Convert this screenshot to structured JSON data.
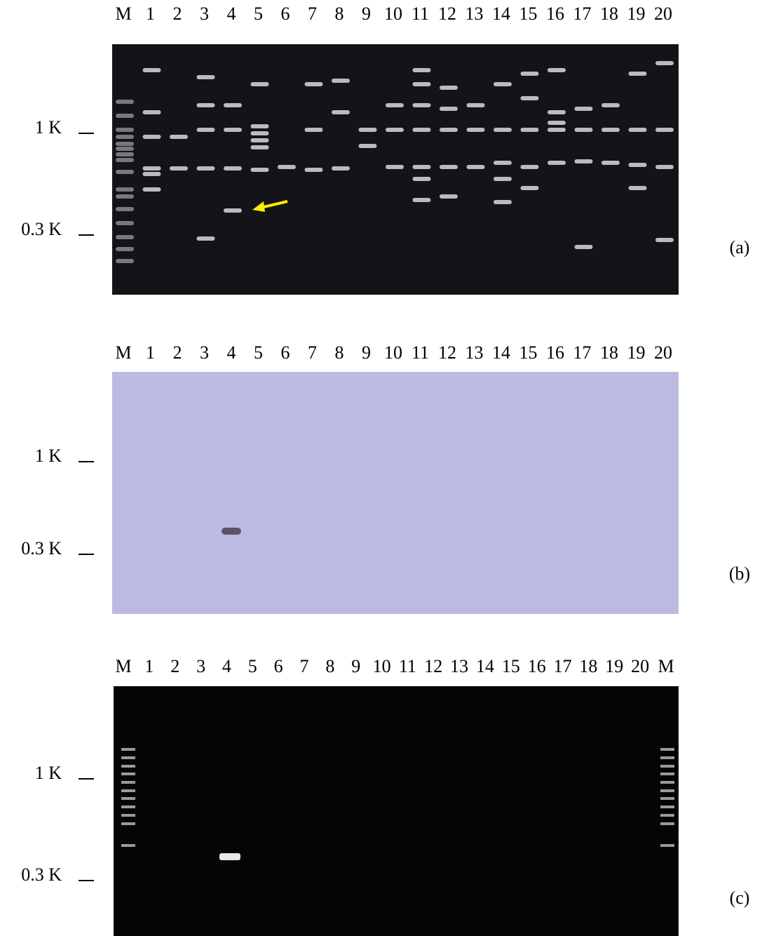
{
  "panels": [
    {
      "lanes": [
        "M",
        "1",
        "2",
        "3",
        "4",
        "5",
        "6",
        "7",
        "8",
        "9",
        "10",
        "11",
        "12",
        "13",
        "14",
        "15",
        "16",
        "17",
        "18",
        "19",
        "20"
      ],
      "markers": [
        "1 K",
        "0.3 K"
      ],
      "label": "(a)"
    },
    {
      "lanes": [
        "M",
        "1",
        "2",
        "3",
        "4",
        "5",
        "6",
        "7",
        "8",
        "9",
        "10",
        "11",
        "12",
        "13",
        "14",
        "15",
        "16",
        "17",
        "18",
        "19",
        "20"
      ],
      "markers": [
        "1 K",
        "0.3 K"
      ],
      "label": "(b)"
    },
    {
      "lanes": [
        "M",
        "1",
        "2",
        "3",
        "4",
        "5",
        "6",
        "7",
        "8",
        "9",
        "10",
        "11",
        "12",
        "13",
        "14",
        "15",
        "16",
        "17",
        "18",
        "19",
        "20",
        "M"
      ],
      "markers": [
        "1 K",
        "0.3 K"
      ],
      "label": "(c)"
    }
  ]
}
